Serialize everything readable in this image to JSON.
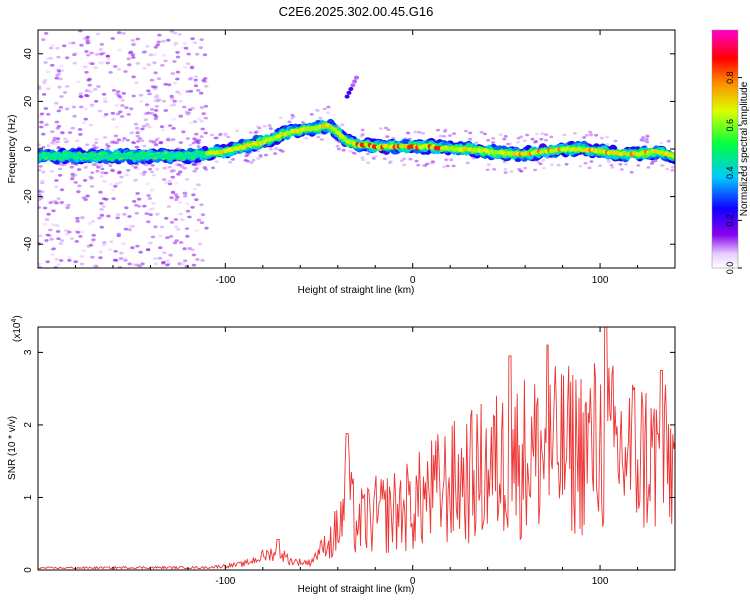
{
  "title": "C2E6.2025.302.00.45.G16",
  "chart_data": [
    {
      "type": "heatmap",
      "xlabel": "Height of straight line (km)",
      "ylabel": "Frequency (Hz)",
      "xlim": [
        -200,
        140
      ],
      "ylim": [
        -50,
        50
      ],
      "x_ticks": [
        -100,
        0,
        100
      ],
      "y_ticks": [
        -40,
        -20,
        0,
        20,
        40
      ],
      "colorbar": {
        "label": "Normalized spectral amplitude",
        "range": [
          0,
          1
        ],
        "ticks": [
          0.0,
          0.2,
          0.4,
          0.6,
          0.8
        ]
      },
      "ridge": [
        {
          "x": -200,
          "f": -3
        },
        {
          "x": -180,
          "f": -3
        },
        {
          "x": -160,
          "f": -3
        },
        {
          "x": -140,
          "f": -3
        },
        {
          "x": -120,
          "f": -3
        },
        {
          "x": -110,
          "f": -2
        },
        {
          "x": -100,
          "f": -1
        },
        {
          "x": -90,
          "f": 1
        },
        {
          "x": -80,
          "f": 3
        },
        {
          "x": -70,
          "f": 6
        },
        {
          "x": -60,
          "f": 8
        },
        {
          "x": -50,
          "f": 9
        },
        {
          "x": -45,
          "f": 10
        },
        {
          "x": -40,
          "f": 7
        },
        {
          "x": -35,
          "f": 3
        },
        {
          "x": -30,
          "f": 2
        },
        {
          "x": -20,
          "f": 1
        },
        {
          "x": -10,
          "f": 1
        },
        {
          "x": 0,
          "f": 1
        },
        {
          "x": 10,
          "f": 1
        },
        {
          "x": 20,
          "f": 0
        },
        {
          "x": 30,
          "f": 0
        },
        {
          "x": 40,
          "f": -1
        },
        {
          "x": 50,
          "f": -2
        },
        {
          "x": 60,
          "f": -2
        },
        {
          "x": 70,
          "f": -1
        },
        {
          "x": 80,
          "f": 0
        },
        {
          "x": 90,
          "f": 0
        },
        {
          "x": 100,
          "f": -1
        },
        {
          "x": 110,
          "f": -2
        },
        {
          "x": 120,
          "f": -2
        },
        {
          "x": 130,
          "f": -1
        },
        {
          "x": 140,
          "f": -3
        }
      ],
      "noise_region_x": [
        -200,
        -110
      ],
      "secondary_feature": {
        "x": [
          -35,
          -30
        ],
        "f": [
          22,
          30
        ]
      }
    },
    {
      "type": "line",
      "xlabel": "Height of straight line (km)",
      "ylabel": "SNR (10 * v/v)",
      "y_multiplier": "(x10",
      "y_multiplier_exp": "4",
      "y_multiplier_close": ")",
      "xlim": [
        -200,
        140
      ],
      "ylim": [
        0,
        3.35
      ],
      "x_ticks": [
        -100,
        0,
        100
      ],
      "y_ticks": [
        0,
        1,
        2,
        3
      ],
      "color": "#ee3333",
      "envelope": [
        {
          "x": -200,
          "y": 0.04
        },
        {
          "x": -150,
          "y": 0.05
        },
        {
          "x": -110,
          "y": 0.05
        },
        {
          "x": -90,
          "y": 0.12
        },
        {
          "x": -80,
          "y": 0.28
        },
        {
          "x": -72,
          "y": 0.38
        },
        {
          "x": -65,
          "y": 0.18
        },
        {
          "x": -55,
          "y": 0.15
        },
        {
          "x": -45,
          "y": 0.6
        },
        {
          "x": -40,
          "y": 0.95
        },
        {
          "x": -35,
          "y": 1.7
        },
        {
          "x": -30,
          "y": 1.1
        },
        {
          "x": -20,
          "y": 1.3
        },
        {
          "x": -10,
          "y": 1.4
        },
        {
          "x": 0,
          "y": 1.55
        },
        {
          "x": 10,
          "y": 1.85
        },
        {
          "x": 20,
          "y": 2.05
        },
        {
          "x": 30,
          "y": 2.2
        },
        {
          "x": 40,
          "y": 2.4
        },
        {
          "x": 50,
          "y": 2.6
        },
        {
          "x": 60,
          "y": 2.75
        },
        {
          "x": 70,
          "y": 2.8
        },
        {
          "x": 80,
          "y": 2.85
        },
        {
          "x": 90,
          "y": 2.9
        },
        {
          "x": 100,
          "y": 3.0
        },
        {
          "x": 110,
          "y": 2.85
        },
        {
          "x": 120,
          "y": 2.8
        },
        {
          "x": 130,
          "y": 2.65
        },
        {
          "x": 140,
          "y": 2.5
        }
      ],
      "peaks": [
        {
          "x": -72,
          "y": 0.42
        },
        {
          "x": -35,
          "y": 1.88
        },
        {
          "x": 52,
          "y": 2.95
        },
        {
          "x": 72,
          "y": 3.1
        },
        {
          "x": 103,
          "y": 3.38
        },
        {
          "x": 133,
          "y": 2.75
        }
      ]
    }
  ]
}
